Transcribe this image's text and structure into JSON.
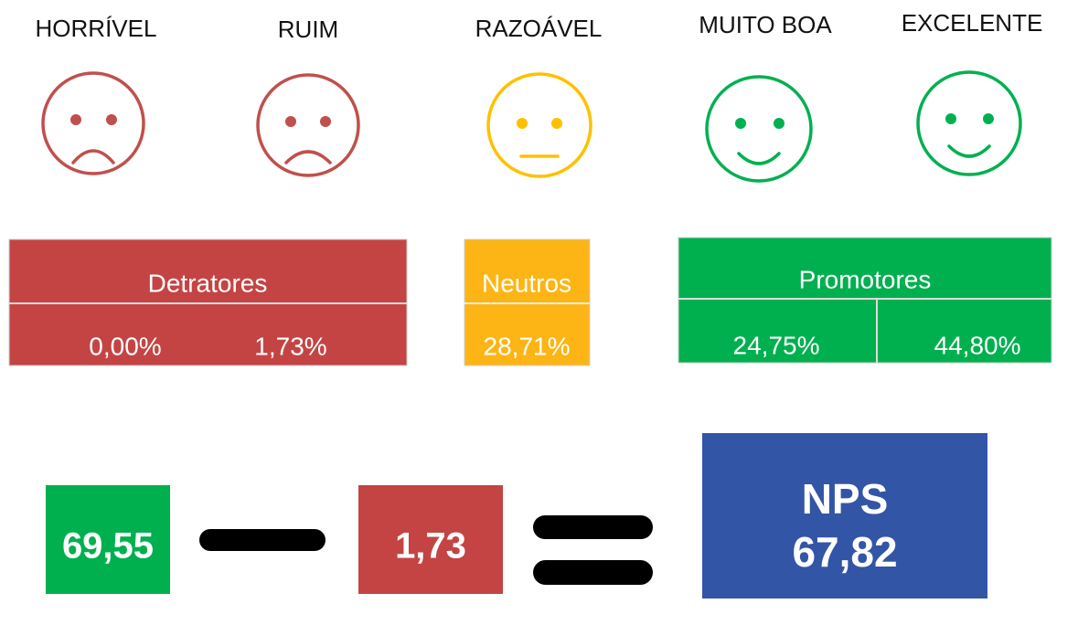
{
  "ratings": [
    "HORRÍVEL",
    "RUIM",
    "RAZOÁVEL",
    "MUITO BOA",
    "EXCELENTE"
  ],
  "groups": [
    {
      "name": "Detratores",
      "values": [
        "0,00%",
        "1,73%"
      ]
    },
    {
      "name": "Neutros",
      "values": [
        "28,71%"
      ]
    },
    {
      "name": "Promotores",
      "values": [
        "24,75%",
        "44,80%"
      ]
    }
  ],
  "formula": {
    "promoters": "69,55",
    "detractors": "1,73",
    "result_label": "NPS",
    "result": "67,82"
  }
}
